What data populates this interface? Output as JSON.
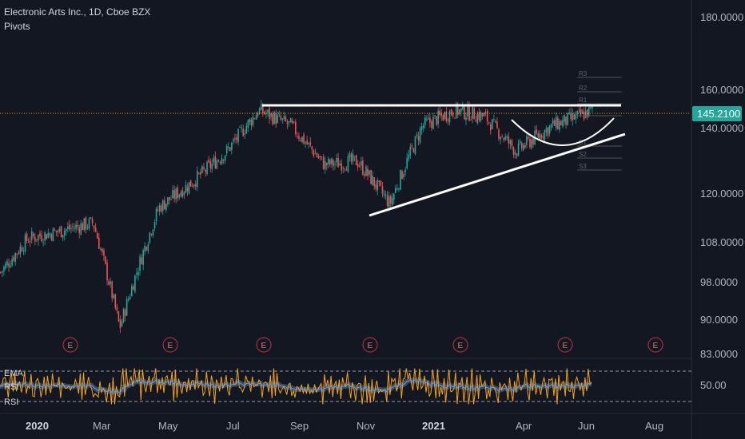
{
  "header": {
    "symbol": "Electronic Arts Inc., 1D, Cboe BZX",
    "indicator": "Pivots"
  },
  "indicator_labels": {
    "ema": "EMA",
    "rsi_1": "RSI",
    "rsi_2": "RSI"
  },
  "price_badge": {
    "value": "145.2100",
    "color": "#26a69a"
  },
  "earnings_marker": "E",
  "colors": {
    "background": "#131722",
    "up": "#26a69a",
    "down": "#ef5350",
    "drawing": "#ffffff",
    "rsi_line": "#f7a21b",
    "ema_line": "#5b9cf6",
    "price_line": "#f7a21b"
  },
  "chart_data": [
    {
      "type": "candlestick",
      "title": "Electronic Arts Inc., 1D, Cboe BZX",
      "x_ticks": [
        "2020",
        "Mar",
        "May",
        "Jul",
        "Sep",
        "Nov",
        "2021",
        "Apr",
        "Jun",
        "Aug"
      ],
      "y_ticks": [
        "180.0000",
        "160.0000",
        "140.0000",
        "120.0000",
        "108.0000",
        "98.0000",
        "90.0000",
        "83.0000"
      ],
      "ylim": [
        83,
        188
      ],
      "y_scale": "log",
      "last_price": 145.21,
      "series_approx_closes": [
        {
          "date": "2019-12",
          "close": 100
        },
        {
          "date": "2020-01",
          "close": 108
        },
        {
          "date": "2020-02",
          "close": 112
        },
        {
          "date": "2020-03",
          "close": 88
        },
        {
          "date": "2020-04",
          "close": 116
        },
        {
          "date": "2020-05",
          "close": 123
        },
        {
          "date": "2020-06",
          "close": 132
        },
        {
          "date": "2020-07",
          "close": 145
        },
        {
          "date": "2020-08",
          "close": 140
        },
        {
          "date": "2020-09",
          "close": 128
        },
        {
          "date": "2020-10",
          "close": 129
        },
        {
          "date": "2020-11",
          "close": 117
        },
        {
          "date": "2020-12",
          "close": 140
        },
        {
          "date": "2021-01",
          "close": 145
        },
        {
          "date": "2021-02",
          "close": 143
        },
        {
          "date": "2021-03",
          "close": 132
        },
        {
          "date": "2021-04",
          "close": 140
        },
        {
          "date": "2021-05",
          "close": 143
        },
        {
          "date": "2021-06",
          "close": 145.21
        }
      ],
      "annotations": [
        "horizontal resistance near 146",
        "rising trendline from Nov 2020 low",
        "cup / rounding bottom Apr–Jun 2021",
        "pivot levels R3 R2 R1 P S1 S2 S3"
      ],
      "pivot_labels": [
        "R3",
        "R2",
        "R1",
        "P",
        "S1",
        "S2",
        "S3"
      ],
      "grid": false
    },
    {
      "type": "line",
      "title": "RSI",
      "y_ticks": [
        "50.00"
      ],
      "series": [
        {
          "name": "RSI"
        },
        {
          "name": "EMA"
        }
      ],
      "guides": [
        70,
        30
      ]
    }
  ]
}
